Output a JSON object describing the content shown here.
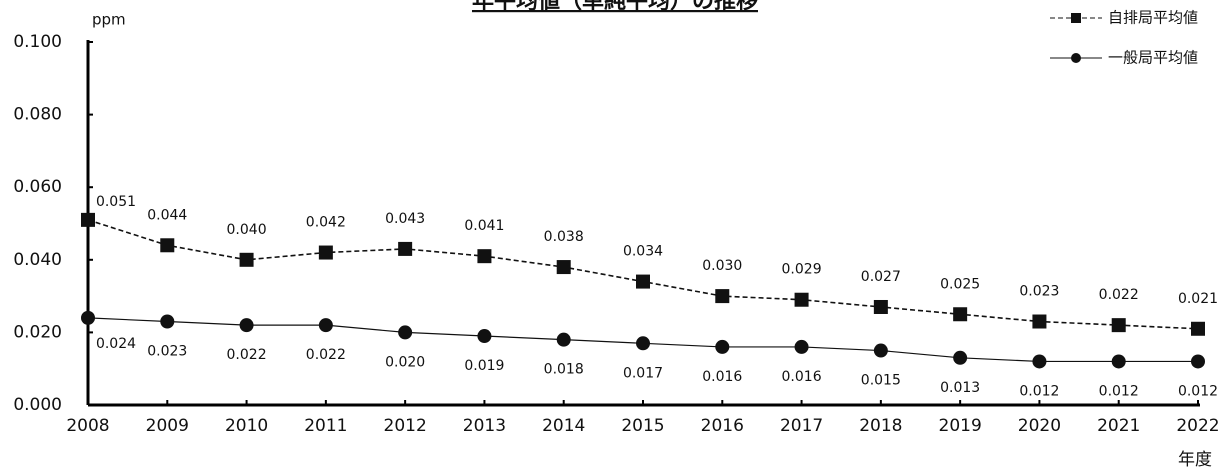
{
  "chart_data": {
    "type": "line",
    "title": "年平均値（単純平均）の推移",
    "y_label": "ppm",
    "x_label": "年度",
    "categories": [
      "2008",
      "2009",
      "2010",
      "2011",
      "2012",
      "2013",
      "2014",
      "2015",
      "2016",
      "2017",
      "2018",
      "2019",
      "2020",
      "2021",
      "2022"
    ],
    "series": [
      {
        "name": "自排局平均値",
        "color": "#111111",
        "marker": "square",
        "dash": true,
        "values": [
          0.051,
          0.044,
          0.04,
          0.042,
          0.043,
          0.041,
          0.038,
          0.034,
          0.03,
          0.029,
          0.027,
          0.025,
          0.023,
          0.022,
          0.021
        ],
        "value_labels": [
          "0.051",
          "0.044",
          "0.040",
          "0.042",
          "0.043",
          "0.041",
          "0.038",
          "0.034",
          "0.030",
          "0.029",
          "0.027",
          "0.025",
          "0.023",
          "0.022",
          "0.021"
        ]
      },
      {
        "name": "一般局平均値",
        "color": "#111111",
        "marker": "circle",
        "dash": false,
        "values": [
          0.024,
          0.023,
          0.022,
          0.022,
          0.02,
          0.019,
          0.018,
          0.017,
          0.016,
          0.016,
          0.015,
          0.013,
          0.012,
          0.012,
          0.012
        ],
        "value_labels": [
          "0.024",
          "0.023",
          "0.022",
          "0.022",
          "0.020",
          "0.019",
          "0.018",
          "0.017",
          "0.016",
          "0.016",
          "0.015",
          "0.013",
          "0.012",
          "0.012",
          "0.012"
        ]
      }
    ],
    "ylim": [
      0,
      0.1
    ],
    "yticks": [
      {
        "value": 0,
        "label": "0.000"
      },
      {
        "value": 0.02,
        "label": "0.020"
      },
      {
        "value": 0.04,
        "label": "0.040"
      },
      {
        "value": 0.06,
        "label": "0.060"
      },
      {
        "value": 0.08,
        "label": "0.080"
      },
      {
        "value": 0.1,
        "label": "0.100"
      }
    ],
    "legend": "top-right"
  }
}
